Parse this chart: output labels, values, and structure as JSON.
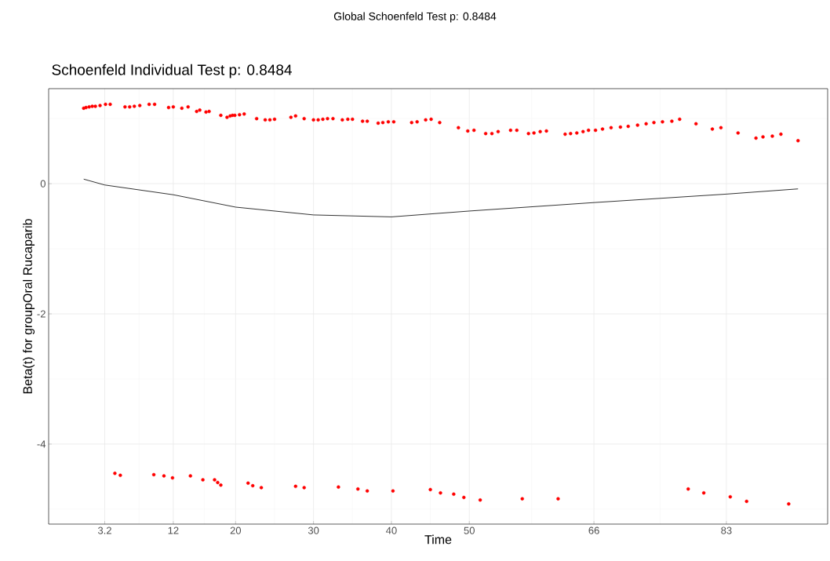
{
  "chart_data": {
    "type": "scatter",
    "title": "Global Schoenfeld Test p: 0.8484",
    "subtitle": "Schoenfeld Individual Test p: 0.8484",
    "xlabel": "Time",
    "ylabel": "Beta(t) for groupOral Rucaparib",
    "xlim": [
      -4,
      96
    ],
    "ylim": [
      -5.23,
      1.46
    ],
    "xticks": [
      3.2,
      12,
      20,
      30,
      40,
      50,
      66,
      83
    ],
    "yticks": [
      -4,
      -2,
      0
    ],
    "grid": true,
    "series": [
      {
        "color": "#ff0000",
        "marker": "circle",
        "x": [
          0.5,
          0.8,
          1.2,
          1.6,
          2.0,
          2.6,
          3.3,
          3.9,
          5.8,
          6.4,
          7.0,
          7.7,
          8.9,
          9.6,
          11.4,
          12.0,
          13.1,
          13.9,
          15.0,
          15.4,
          16.2,
          16.6,
          18.1,
          18.9,
          19.3,
          19.6,
          19.9,
          20.5,
          21.1,
          22.7,
          23.8,
          24.4,
          25.0,
          27.1,
          27.7,
          28.8,
          30.0,
          30.6,
          31.2,
          31.8,
          32.5,
          33.7,
          34.4,
          35.0,
          36.3,
          36.9,
          38.3,
          38.9,
          39.6,
          40.3,
          42.6,
          43.3,
          44.4,
          45.1,
          46.2,
          48.6,
          49.8,
          50.6,
          52.1,
          52.9,
          53.7,
          55.3,
          56.1,
          57.6,
          58.3,
          59.1,
          59.9,
          62.3,
          63.0,
          63.8,
          64.6,
          65.3,
          66.2,
          67.1,
          68.2,
          69.4,
          70.4,
          71.6,
          72.7,
          73.7,
          74.8,
          76.0,
          77.0,
          79.1,
          81.2,
          82.3,
          84.5,
          86.8,
          87.7,
          88.9,
          90.0,
          92.2,
          4.5,
          5.2,
          9.5,
          10.8,
          11.9,
          14.2,
          15.8,
          17.3,
          17.7,
          18.1,
          21.6,
          22.2,
          23.3,
          27.7,
          28.8,
          33.2,
          35.7,
          36.9,
          40.2,
          45.0,
          46.3,
          48.0,
          49.3,
          51.4,
          56.8,
          61.4,
          78.1,
          80.1,
          83.5,
          85.6,
          91.0
        ],
        "values": [
          1.16,
          1.17,
          1.18,
          1.19,
          1.19,
          1.2,
          1.22,
          1.22,
          1.18,
          1.18,
          1.19,
          1.2,
          1.22,
          1.22,
          1.17,
          1.18,
          1.16,
          1.18,
          1.11,
          1.13,
          1.1,
          1.11,
          1.05,
          1.02,
          1.04,
          1.05,
          1.05,
          1.06,
          1.07,
          1.0,
          0.98,
          0.98,
          0.99,
          1.02,
          1.04,
          1.0,
          0.98,
          0.98,
          0.99,
          1.0,
          1.0,
          0.98,
          0.99,
          0.99,
          0.96,
          0.96,
          0.93,
          0.94,
          0.95,
          0.95,
          0.94,
          0.95,
          0.98,
          0.99,
          0.94,
          0.86,
          0.81,
          0.82,
          0.77,
          0.77,
          0.8,
          0.82,
          0.82,
          0.77,
          0.78,
          0.8,
          0.81,
          0.76,
          0.77,
          0.78,
          0.8,
          0.82,
          0.82,
          0.84,
          0.86,
          0.87,
          0.88,
          0.9,
          0.92,
          0.94,
          0.95,
          0.96,
          0.99,
          0.92,
          0.84,
          0.86,
          0.78,
          0.7,
          0.72,
          0.73,
          0.76,
          0.66,
          -4.45,
          -4.48,
          -4.47,
          -4.49,
          -4.52,
          -4.49,
          -4.55,
          -4.55,
          -4.59,
          -4.63,
          -4.6,
          -4.64,
          -4.67,
          -4.65,
          -4.67,
          -4.66,
          -4.69,
          -4.72,
          -4.72,
          -4.7,
          -4.75,
          -4.77,
          -4.82,
          -4.86,
          -4.84,
          -4.84,
          -4.69,
          -4.75,
          -4.81,
          -4.88,
          -4.92
        ]
      },
      {
        "type": "line",
        "color": "#000000",
        "line_style": "solid",
        "x": [
          0.5,
          3.2,
          12,
          20,
          30,
          40,
          50,
          66,
          83,
          92.2
        ],
        "values": [
          0.07,
          -0.02,
          -0.17,
          -0.36,
          -0.48,
          -0.51,
          -0.42,
          -0.29,
          -0.16,
          -0.08
        ]
      }
    ]
  }
}
